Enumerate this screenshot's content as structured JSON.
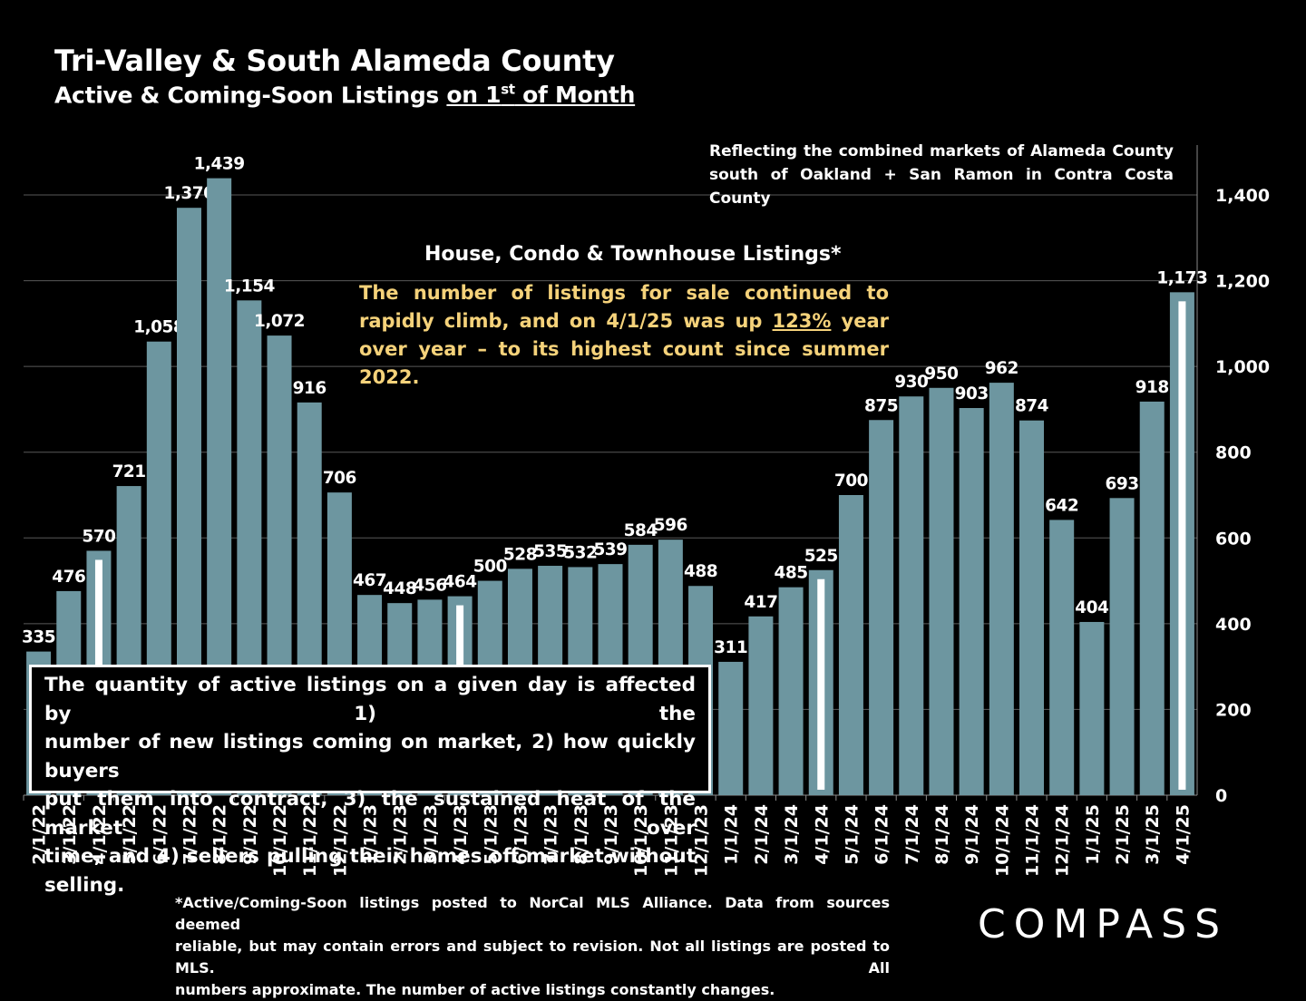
{
  "title": "Tri-Valley & South Alameda County",
  "subtitle": {
    "prefix": "Active & Coming-Soon Listings ",
    "underlined_main": "on 1",
    "sup": "st",
    "underlined_tail": " of Month"
  },
  "note_top": [
    "Reflecting the combined markets of Alameda County",
    "south of Oakland + San Ramon in Contra Costa County"
  ],
  "house_heading": "House, Condo & Townhouse Listings*",
  "highlight": {
    "before": "The number of listings for sale continued to rapidly climb, and on 4/1/25 was up ",
    "pct": "123%",
    "after": " year over year – to its highest count since summer 2022.",
    "color": "#f5d27a"
  },
  "factbox_lines": [
    "The quantity of active listings on a given day is affected by 1) the",
    "number of new listings coming on market, 2) how quickly buyers",
    "put them into contract, 3) the sustained heat of the market over",
    "time, and 4) sellers pulling their homes off market without selling."
  ],
  "footnote_lines": [
    "*Active/Coming-Soon listings posted to NorCal MLS Alliance.  Data from sources deemed",
    "reliable, but may contain errors and subject to revision.  Not all listings are posted to MLS. All",
    "numbers approximate. The number of active listings constantly changes."
  ],
  "logo": "COMPASS",
  "colors": {
    "bar": "#6d96a0",
    "background": "#000000",
    "highlight_marker": "#ffffff"
  },
  "chart_data": {
    "type": "bar",
    "categories": [
      "2/1/22",
      "3/1/22",
      "4/1/22",
      "5/1/22",
      "6/1/22",
      "7/1/22",
      "8/1/22",
      "9/1/22",
      "10/1/22",
      "11/1/22",
      "12/1/22",
      "1/1/23",
      "2/1/23",
      "3/1/23",
      "4/1/23",
      "5/1/23",
      "6/1/23",
      "7/1/23",
      "8/1/23",
      "9/1/23",
      "10/1/23",
      "11/1/23",
      "12/1/23",
      "1/1/24",
      "2/1/24",
      "3/1/24",
      "4/1/24",
      "5/1/24",
      "6/1/24",
      "7/1/24",
      "8/1/24",
      "9/1/24",
      "10/1/24",
      "11/1/24",
      "12/1/24",
      "1/1/25",
      "2/1/25",
      "3/1/25",
      "4/1/25"
    ],
    "values": [
      335,
      476,
      570,
      721,
      1058,
      1370,
      1439,
      1154,
      1072,
      916,
      706,
      467,
      448,
      456,
      464,
      500,
      528,
      535,
      532,
      539,
      584,
      596,
      488,
      311,
      417,
      485,
      525,
      700,
      875,
      930,
      950,
      903,
      962,
      874,
      642,
      404,
      693,
      918,
      1173
    ],
    "labels": [
      "335",
      "476",
      "570",
      "721",
      "1,058",
      "1,370",
      "1,439",
      "1,154",
      "1,072",
      "916",
      "706",
      "467",
      "448",
      "456",
      "464",
      "500",
      "528",
      "535",
      "532",
      "539",
      "584",
      "596",
      "488",
      "311",
      "417",
      "485",
      "525",
      "700",
      "875",
      "930",
      "950",
      "903",
      "962",
      "874",
      "642",
      "404",
      "693",
      "918",
      "1,173"
    ],
    "highlighted": [
      "4/1/22",
      "4/1/23",
      "4/1/24",
      "4/1/25"
    ],
    "ylim": [
      0,
      1400
    ],
    "yticks": [
      0,
      200,
      400,
      600,
      800,
      1000,
      1200,
      1400
    ],
    "ytick_labels": [
      "0",
      "200",
      "400",
      "600",
      "800",
      "1,000",
      "1,200",
      "1,400"
    ],
    "y_axis_side": "right",
    "grid": true
  }
}
